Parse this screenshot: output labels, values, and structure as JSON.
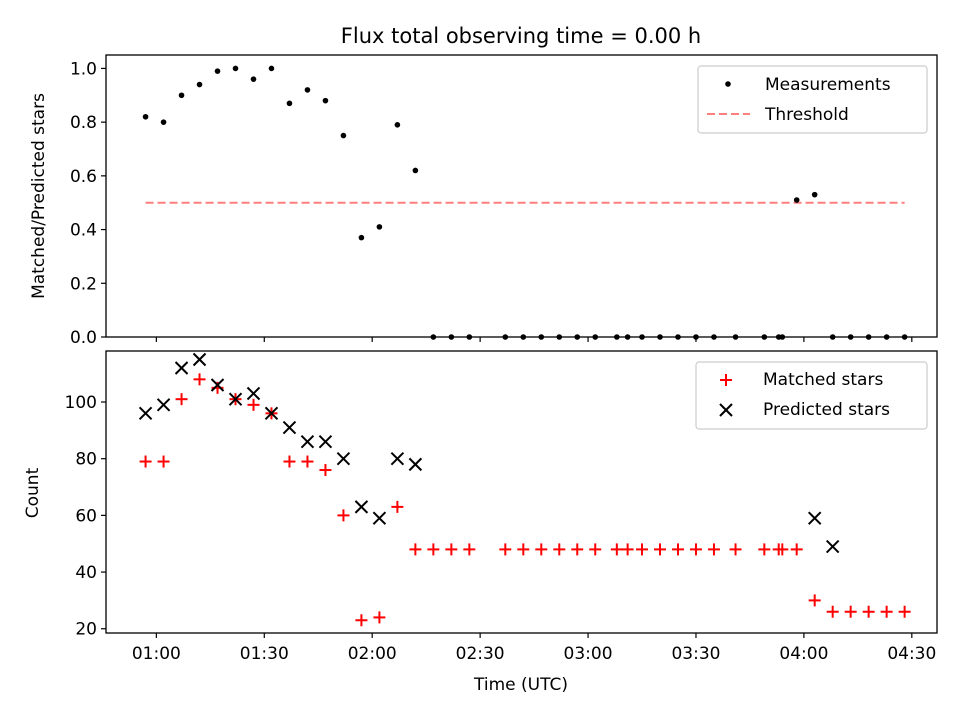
{
  "chart_data": [
    {
      "type": "scatter",
      "title": "Flux total observing time = 0.00 h",
      "xlabel": "",
      "ylabel": "Matched/Predicted stars",
      "xlim": [
        "00:46",
        "04:37"
      ],
      "ylim": [
        0.0,
        1.05
      ],
      "yticks": [
        0.0,
        0.2,
        0.4,
        0.6,
        0.8,
        1.0
      ],
      "ytick_labels": [
        "0.0",
        "0.2",
        "0.4",
        "0.6",
        "0.8",
        "1.0"
      ],
      "legend_position": "top-right",
      "series": [
        {
          "name": "Measurements",
          "color": "#000000",
          "marker": "dot",
          "x": [
            "00:57",
            "01:02",
            "01:07",
            "01:12",
            "01:17",
            "01:22",
            "01:27",
            "01:32",
            "01:37",
            "01:42",
            "01:47",
            "01:52",
            "01:57",
            "02:02",
            "02:07",
            "02:12",
            "02:17",
            "02:22",
            "02:27",
            "02:37",
            "02:42",
            "02:47",
            "02:52",
            "02:57",
            "03:02",
            "03:08",
            "03:11",
            "03:15",
            "03:20",
            "03:25",
            "03:30",
            "03:35",
            "03:41",
            "03:49",
            "03:53",
            "03:54",
            "03:58",
            "04:03",
            "04:08",
            "04:13",
            "04:18",
            "04:23",
            "04:28"
          ],
          "y": [
            0.82,
            0.8,
            0.9,
            0.94,
            0.99,
            1.0,
            0.96,
            1.0,
            0.87,
            0.92,
            0.88,
            0.75,
            0.37,
            0.41,
            0.79,
            0.62,
            0.0,
            0.0,
            0.0,
            0.0,
            0.0,
            0.0,
            0.0,
            0.0,
            0.0,
            0.0,
            0.0,
            0.0,
            0.0,
            0.0,
            0.0,
            0.0,
            0.0,
            0.0,
            0.0,
            0.0,
            0.51,
            0.53,
            0.0,
            0.0,
            0.0,
            0.0,
            0.0
          ]
        },
        {
          "name": "Threshold",
          "color": "#ff7f7f",
          "style": "dashed",
          "x": [
            "00:57",
            "04:28"
          ],
          "y": [
            0.5,
            0.5
          ]
        }
      ]
    },
    {
      "type": "scatter",
      "title": "",
      "xlabel": "Time (UTC)",
      "ylabel": "Count",
      "xlim": [
        "00:46",
        "04:37"
      ],
      "ylim": [
        18.5,
        118
      ],
      "yticks": [
        20,
        40,
        60,
        80,
        100
      ],
      "ytick_labels": [
        "20",
        "40",
        "60",
        "80",
        "100"
      ],
      "xticks": [
        "01:00",
        "01:30",
        "02:00",
        "02:30",
        "03:00",
        "03:30",
        "04:00",
        "04:30"
      ],
      "legend_position": "top-right",
      "series": [
        {
          "name": "Matched stars",
          "color": "#ff0000",
          "marker": "plus",
          "x": [
            "00:57",
            "01:02",
            "01:07",
            "01:12",
            "01:17",
            "01:22",
            "01:27",
            "01:32",
            "01:37",
            "01:42",
            "01:47",
            "01:52",
            "01:57",
            "02:02",
            "02:07",
            "02:12",
            "02:17",
            "02:22",
            "02:27",
            "02:37",
            "02:42",
            "02:47",
            "02:52",
            "02:57",
            "03:02",
            "03:08",
            "03:11",
            "03:15",
            "03:20",
            "03:25",
            "03:30",
            "03:35",
            "03:41",
            "03:49",
            "03:53",
            "03:54",
            "03:58",
            "04:03",
            "04:08",
            "04:13",
            "04:18",
            "04:23",
            "04:28"
          ],
          "y": [
            79,
            79,
            101,
            108,
            105,
            101,
            99,
            96,
            79,
            79,
            76,
            60,
            23,
            24,
            63,
            48,
            48,
            48,
            48,
            48,
            48,
            48,
            48,
            48,
            48,
            48,
            48,
            48,
            48,
            48,
            48,
            48,
            48,
            48,
            48,
            48,
            48,
            30,
            26,
            26,
            26,
            26,
            26
          ]
        },
        {
          "name": "Predicted stars",
          "color": "#000000",
          "marker": "x",
          "x": [
            "00:57",
            "01:02",
            "01:07",
            "01:12",
            "01:17",
            "01:22",
            "01:27",
            "01:32",
            "01:37",
            "01:42",
            "01:47",
            "01:52",
            "01:57",
            "02:02",
            "02:07",
            "02:12",
            "04:03",
            "04:08"
          ],
          "y": [
            96,
            99,
            112,
            115,
            106,
            101,
            103,
            96,
            91,
            86,
            86,
            80,
            63,
            59,
            80,
            78,
            59,
            49
          ]
        }
      ]
    }
  ]
}
